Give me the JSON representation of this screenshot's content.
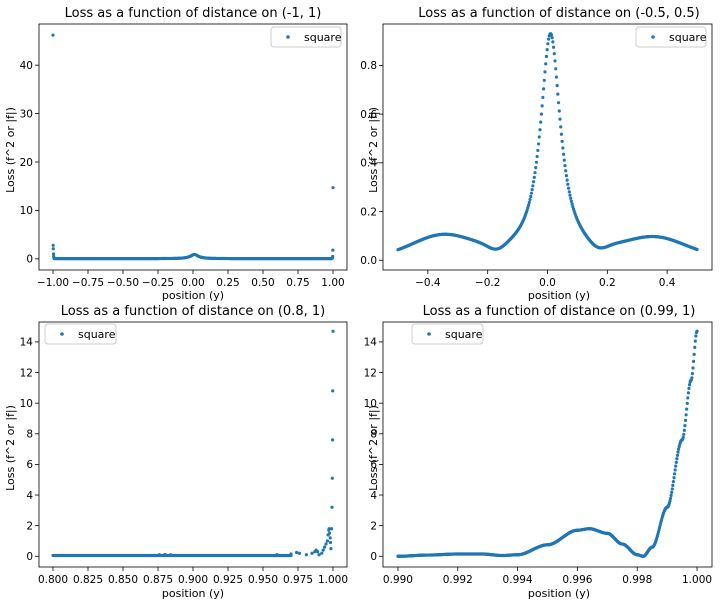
{
  "figure": {
    "background": "#ffffff",
    "marker_color": "#1f77b4"
  },
  "chart_data": [
    {
      "type": "scatter",
      "title": "Loss as a function of distance on (-1, 1)",
      "xlabel": "position (y)",
      "ylabel": "Loss (f^2 or |f|)",
      "xlim": [
        -1.1,
        1.1
      ],
      "ylim": [
        -2.3,
        48.5
      ],
      "xticks": [
        -1.0,
        -0.75,
        -0.5,
        -0.25,
        0.0,
        0.25,
        0.5,
        0.75,
        1.0
      ],
      "xtick_labels": [
        "−1.00",
        "−0.75",
        "−0.50",
        "−0.25",
        "0.00",
        "0.25",
        "0.50",
        "0.75",
        "1.00"
      ],
      "yticks": [
        0,
        10,
        20,
        30,
        40
      ],
      "ytick_labels": [
        "0",
        "10",
        "20",
        "30",
        "40"
      ],
      "legend": {
        "label": "square",
        "loc": "top-right"
      },
      "series": [
        {
          "name": "square",
          "color": "#1f77b4",
          "segments": [
            {
              "range": [
                -0.99,
                0.99
              ],
              "kind": "bell",
              "center": 0.01,
              "width": 0.06,
              "peak": 0.9,
              "tail": 0.05,
              "count": 320
            }
          ],
          "points": [
            {
              "x": -1.0,
              "y": 46.2
            },
            {
              "x": -0.999,
              "y": 2.8
            },
            {
              "x": -0.998,
              "y": 2.1
            },
            {
              "x": -0.996,
              "y": 1.0
            },
            {
              "x": -0.995,
              "y": 0.5
            },
            {
              "x": -0.993,
              "y": 0.2
            },
            {
              "x": 1.0,
              "y": 14.7
            },
            {
              "x": 0.999,
              "y": 1.8
            },
            {
              "x": 0.998,
              "y": 0.5
            },
            {
              "x": 0.996,
              "y": 0.2
            }
          ]
        }
      ]
    },
    {
      "type": "scatter",
      "title": "Loss as a function of distance on (-0.5, 0.5)",
      "xlabel": "position (y)",
      "ylabel": "Loss (f^2 or |f|)",
      "xlim": [
        -0.55,
        0.55
      ],
      "ylim": [
        -0.04,
        0.97
      ],
      "xticks": [
        -0.4,
        -0.2,
        0.0,
        0.2,
        0.4
      ],
      "xtick_labels": [
        "−0.4",
        "−0.2",
        "0.0",
        "0.2",
        "0.4"
      ],
      "yticks": [
        0.0,
        0.2,
        0.4,
        0.6,
        0.8
      ],
      "ytick_labels": [
        "0.0",
        "0.2",
        "0.4",
        "0.6",
        "0.8"
      ],
      "legend": {
        "label": "square",
        "loc": "top-right"
      },
      "series": [
        {
          "name": "square",
          "color": "#1f77b4",
          "segments": [
            {
              "range": [
                -0.5,
                0.5
              ],
              "kind": "bell_humps",
              "center": 0.01,
              "width": 0.06,
              "peak": 0.93,
              "base": 0.01,
              "humps": [
                {
                  "center": -0.35,
                  "height": 0.085,
                  "sigma": 0.1
                },
                {
                  "center": 0.36,
                  "height": 0.075,
                  "sigma": 0.1
                }
              ],
              "count": 420
            }
          ],
          "points": []
        }
      ]
    },
    {
      "type": "scatter",
      "title": "Loss as a function of distance on (0.8, 1)",
      "xlabel": "position (y)",
      "ylabel": "Loss (f^2 or |f|)",
      "xlim": [
        0.79,
        1.01
      ],
      "ylim": [
        -0.7,
        15.3
      ],
      "xticks": [
        0.8,
        0.825,
        0.85,
        0.875,
        0.9,
        0.925,
        0.95,
        0.975,
        1.0
      ],
      "xtick_labels": [
        "0.800",
        "0.825",
        "0.850",
        "0.875",
        "0.900",
        "0.925",
        "0.950",
        "0.975",
        "1.000"
      ],
      "yticks": [
        0,
        2,
        4,
        6,
        8,
        10,
        12,
        14
      ],
      "ytick_labels": [
        "0",
        "2",
        "4",
        "6",
        "8",
        "10",
        "12",
        "14"
      ],
      "legend": {
        "label": "square",
        "loc": "top-left"
      },
      "series": [
        {
          "name": "square",
          "color": "#1f77b4",
          "segments": [
            {
              "range": [
                0.8,
                0.97
              ],
              "kind": "flat",
              "value": 0.05,
              "count": 260
            }
          ],
          "points": [
            {
              "x": 0.876,
              "y": 0.1
            },
            {
              "x": 0.88,
              "y": 0.12
            },
            {
              "x": 0.884,
              "y": 0.1
            },
            {
              "x": 0.96,
              "y": 0.1
            },
            {
              "x": 0.97,
              "y": 0.15
            },
            {
              "x": 0.974,
              "y": 0.25
            },
            {
              "x": 0.976,
              "y": 0.2
            },
            {
              "x": 0.981,
              "y": 0.1
            },
            {
              "x": 0.985,
              "y": 0.2
            },
            {
              "x": 0.987,
              "y": 0.3
            },
            {
              "x": 0.988,
              "y": 0.4
            },
            {
              "x": 0.989,
              "y": 0.3
            },
            {
              "x": 0.99,
              "y": 0.1
            },
            {
              "x": 0.992,
              "y": 0.2
            },
            {
              "x": 0.993,
              "y": 0.4
            },
            {
              "x": 0.994,
              "y": 0.6
            },
            {
              "x": 0.995,
              "y": 0.8
            },
            {
              "x": 0.996,
              "y": 1.0
            },
            {
              "x": 0.9965,
              "y": 1.4
            },
            {
              "x": 0.997,
              "y": 1.7
            },
            {
              "x": 0.9972,
              "y": 1.8
            },
            {
              "x": 0.9975,
              "y": 1.5
            },
            {
              "x": 0.998,
              "y": 1.2
            },
            {
              "x": 0.9982,
              "y": 0.9
            },
            {
              "x": 0.9985,
              "y": 0.5
            },
            {
              "x": 0.999,
              "y": 1.8
            },
            {
              "x": 0.9993,
              "y": 3.2
            },
            {
              "x": 0.9995,
              "y": 5.1
            },
            {
              "x": 0.9997,
              "y": 7.6
            },
            {
              "x": 0.9998,
              "y": 10.8
            },
            {
              "x": 1.0,
              "y": 14.7
            }
          ]
        }
      ]
    },
    {
      "type": "scatter",
      "title": "Loss as a function of distance on (0.99, 1)",
      "xlabel": "position (y)",
      "ylabel": "Loss (f^2 or |f|)",
      "xlim": [
        0.9895,
        1.0005
      ],
      "ylim": [
        -0.7,
        15.3
      ],
      "xticks": [
        0.99,
        0.992,
        0.994,
        0.996,
        0.998,
        1.0
      ],
      "xtick_labels": [
        "0.990",
        "0.992",
        "0.994",
        "0.996",
        "0.998",
        "1.000"
      ],
      "yticks": [
        0,
        2,
        4,
        6,
        8,
        10,
        12,
        14
      ],
      "ytick_labels": [
        "0",
        "2",
        "4",
        "6",
        "8",
        "10",
        "12",
        "14"
      ],
      "legend": {
        "label": "square",
        "loc": "top-left"
      },
      "series": [
        {
          "name": "square",
          "color": "#1f77b4",
          "segments": [
            {
              "range": [
                0.99,
                1.0
              ],
              "kind": "curve",
              "count": 520,
              "anchors": [
                [
                  0.99,
                  0.0
                ],
                [
                  0.991,
                  0.08
                ],
                [
                  0.992,
                  0.15
                ],
                [
                  0.9928,
                  0.15
                ],
                [
                  0.9935,
                  0.05
                ],
                [
                  0.994,
                  0.1
                ],
                [
                  0.995,
                  0.75
                ],
                [
                  0.996,
                  1.7
                ],
                [
                  0.9964,
                  1.8
                ],
                [
                  0.997,
                  1.5
                ],
                [
                  0.9975,
                  0.8
                ],
                [
                  0.998,
                  0.1
                ],
                [
                  0.9982,
                  0.0
                ],
                [
                  0.9985,
                  0.6
                ],
                [
                  0.999,
                  3.2
                ],
                [
                  0.9995,
                  7.6
                ],
                [
                  0.9998,
                  11.5
                ],
                [
                  1.0,
                  14.7
                ]
              ]
            }
          ],
          "points": []
        }
      ]
    }
  ]
}
